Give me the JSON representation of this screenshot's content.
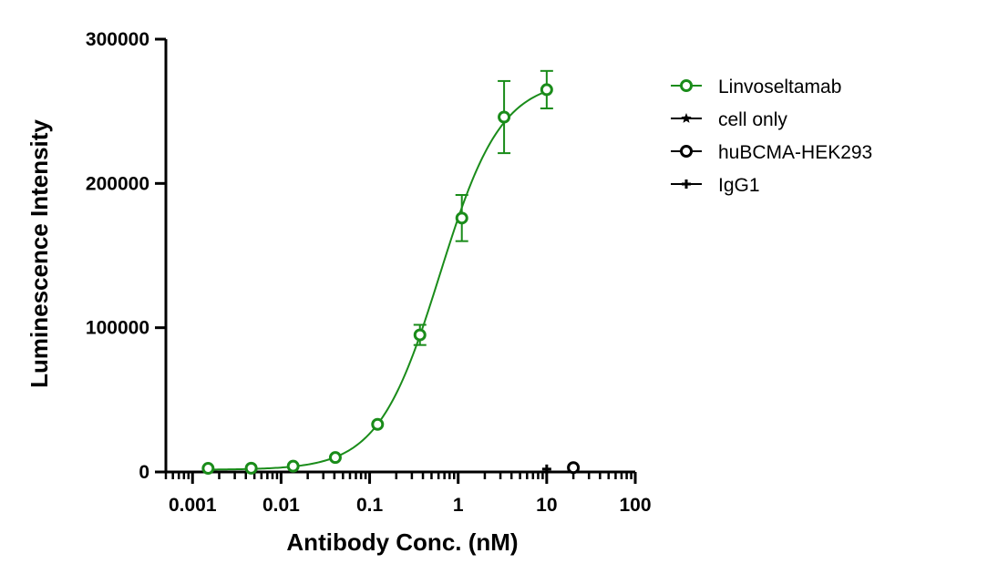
{
  "chart_data": {
    "type": "scatter",
    "xscale": "log",
    "xlabel": "Antibody Conc. (nM)",
    "ylabel": "Luminescence Intensity",
    "xlim": [
      0.0005,
      100
    ],
    "ylim": [
      0,
      300000
    ],
    "x_ticks": [
      "0.001",
      "0.01",
      "0.1",
      "1",
      "10",
      "100"
    ],
    "y_ticks": [
      "0",
      "100000",
      "200000",
      "300000"
    ],
    "grid": false,
    "legend_position": "right",
    "fit_curve": {
      "series": "Linvoseltamab",
      "bottom": 1500,
      "top": 272000,
      "ec50": 0.62,
      "hill": 1.25
    },
    "series": [
      {
        "name": "Linvoseltamab",
        "color": "#1a8c1a",
        "marker": "open-circle",
        "x": [
          0.0015,
          0.0046,
          0.0137,
          0.041,
          0.123,
          0.37,
          1.1,
          3.3,
          10
        ],
        "y": [
          2500,
          2600,
          4000,
          10000,
          33000,
          95000,
          176000,
          246000,
          265000
        ],
        "error": [
          0,
          0,
          0,
          0,
          0,
          7000,
          16000,
          25000,
          13000
        ]
      },
      {
        "name": "cell only",
        "color": "#000000",
        "marker": "star",
        "x": [
          20
        ],
        "y": [
          2500
        ]
      },
      {
        "name": "huBCMA-HEK293",
        "color": "#000000",
        "marker": "open-circle",
        "x": [
          20
        ],
        "y": [
          3000
        ]
      },
      {
        "name": "IgG1",
        "color": "#000000",
        "marker": "plus",
        "x": [
          10
        ],
        "y": [
          2000
        ]
      }
    ]
  }
}
